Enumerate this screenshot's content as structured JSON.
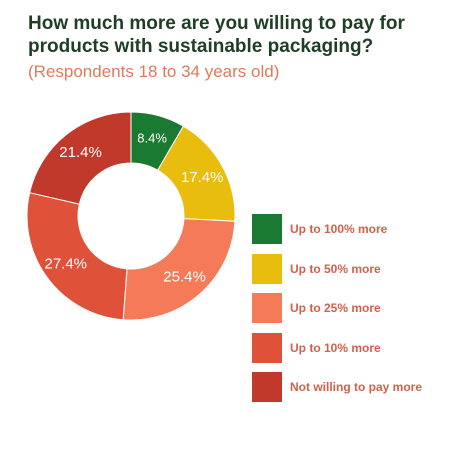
{
  "title": "How much more are you willing to pay for products with sustainable packaging?",
  "subtitle": "(Respondents 18 to 34 years old)",
  "chart_data": {
    "type": "pie",
    "donut": true,
    "title": "How much more are you willing to pay for products with sustainable packaging?",
    "subtitle": "(Respondents 18 to 34 years old)",
    "categories": [
      "Up to 100% more",
      "Up to 50% more",
      "Up to 25% more",
      "Up to 10% more",
      "Not willing to pay more"
    ],
    "values": [
      8.4,
      17.4,
      25.4,
      27.4,
      21.4
    ],
    "labels": [
      "8.4%",
      "17.4%",
      "25.4%",
      "27.4%",
      "21.4%"
    ],
    "colors": [
      "#1b7a32",
      "#e8bd0e",
      "#f47a58",
      "#e0513a",
      "#c0392b"
    ],
    "legend_position": "right"
  }
}
